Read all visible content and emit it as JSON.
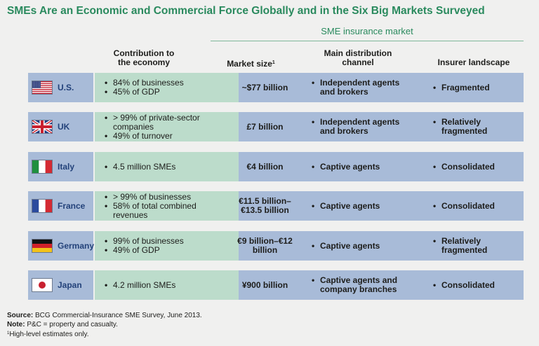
{
  "title": "SMEs Are an Economic and Commercial Force Globally and in the Six Big Markets Surveyed",
  "group_header": "SME insurance market",
  "columns": {
    "economy": "Contribution to the economy",
    "market_size": "Market size",
    "market_size_note": "1",
    "distribution": "Main distribution channel",
    "landscape": "Insurer landscape"
  },
  "colors": {
    "title_green": "#2a8a5e",
    "country_blue": "#a8bbd8",
    "economy_green": "#bcdccb",
    "country_text": "#23427a"
  },
  "rows": [
    {
      "country": "U.S.",
      "flag": "us-flag-icon",
      "economy": [
        "84% of businesses",
        "45% of GDP"
      ],
      "market_size": "~$77 billion",
      "distribution": "Independent agents and brokers",
      "landscape": "Fragmented"
    },
    {
      "country": "UK",
      "flag": "uk-flag-icon",
      "economy": [
        "> 99% of private-sector companies",
        "49% of turnover"
      ],
      "market_size": "£7 billion",
      "distribution": "Independent agents and brokers",
      "landscape": "Relatively fragmented"
    },
    {
      "country": "Italy",
      "flag": "italy-flag-icon",
      "economy": [
        "4.5 million SMEs"
      ],
      "market_size": "€4 billion",
      "distribution": "Captive agents",
      "landscape": "Consolidated"
    },
    {
      "country": "France",
      "flag": "france-flag-icon",
      "economy": [
        "> 99% of businesses",
        "58% of total combined revenues"
      ],
      "market_size": "€11.5 billion–€13.5 billion",
      "distribution": "Captive agents",
      "landscape": "Consolidated"
    },
    {
      "country": "Germany",
      "flag": "germany-flag-icon",
      "economy": [
        "99% of businesses",
        "49% of GDP"
      ],
      "market_size": "€9 billion–€12 billion",
      "distribution": "Captive agents",
      "landscape": "Relatively fragmented"
    },
    {
      "country": "Japan",
      "flag": "japan-flag-icon",
      "economy": [
        "4.2 million SMEs"
      ],
      "market_size": "¥900 billion",
      "distribution": "Captive agents and company branches",
      "landscape": "Consolidated"
    }
  ],
  "footer": {
    "source_label": "Source:",
    "source_text": "BCG Commercial-Insurance SME Survey, June 2013.",
    "note_label": "Note:",
    "note_text": "P&C = property and casualty.",
    "footnote_marker": "1",
    "footnote_text": "High-level estimates only."
  }
}
